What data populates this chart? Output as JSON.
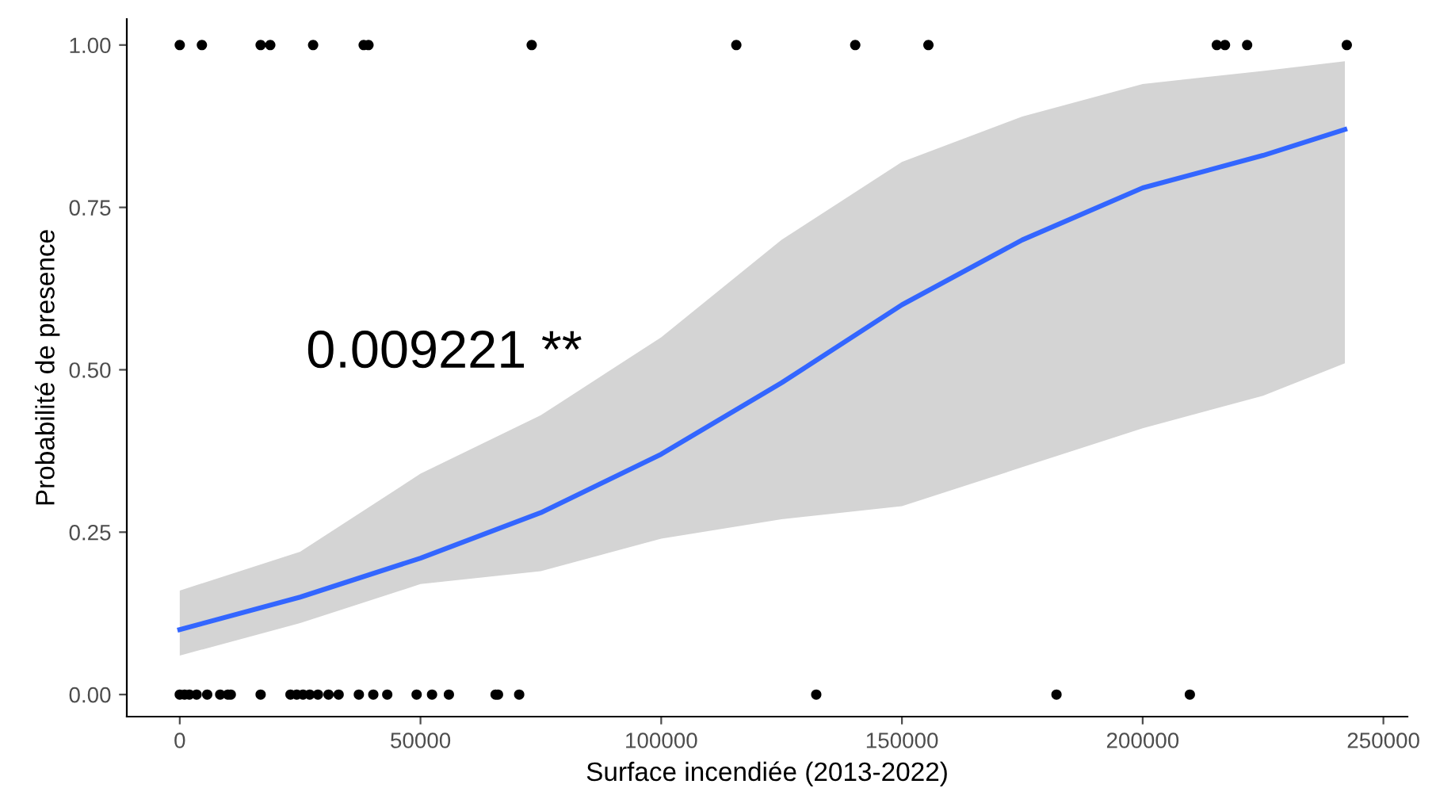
{
  "chart_data": {
    "type": "scatter",
    "xlabel": "Surface incendiée (2013-2022)",
    "ylabel": "Probabilité de presence",
    "xlim": [
      -11000,
      255000
    ],
    "xticks": [
      0,
      50000,
      100000,
      150000,
      200000,
      250000
    ],
    "ylim": [
      -0.034,
      1.04
    ],
    "yticks": [
      {
        "value": 0,
        "label": "0.00"
      },
      {
        "value": 0.25,
        "label": "0.25"
      },
      {
        "value": 0.5,
        "label": "0.50"
      },
      {
        "value": 0.75,
        "label": "0.75"
      },
      {
        "value": 1,
        "label": "1.00"
      }
    ],
    "grid": false,
    "legend": false,
    "annotations": [
      "0.009221 **"
    ],
    "series": [
      {
        "type": "line",
        "color": "#3366ff",
        "marker": "none",
        "x": [
          0,
          25000,
          50000,
          75000,
          100000,
          125000,
          150000,
          175000,
          200000,
          225000,
          242000
        ],
        "values": [
          0.1,
          0.15,
          0.21,
          0.28,
          0.37,
          0.48,
          0.6,
          0.7,
          0.78,
          0.83,
          0.87
        ],
        "lower": [
          0.06,
          0.11,
          0.17,
          0.19,
          0.24,
          0.27,
          0.29,
          0.35,
          0.41,
          0.46,
          0.51
        ],
        "upper": [
          0.16,
          0.22,
          0.34,
          0.43,
          0.55,
          0.7,
          0.82,
          0.89,
          0.94,
          0.96,
          0.975
        ]
      },
      {
        "color": "#000000",
        "marker": "circle",
        "x": [
          0,
          4600,
          16800,
          18800,
          27700,
          38200,
          39200,
          73100,
          115600,
          140300,
          155500,
          215400,
          217100,
          221700,
          242400
        ],
        "values": [
          1,
          1,
          1,
          1,
          1,
          1,
          1,
          1,
          1,
          1,
          1,
          1,
          1,
          1,
          1
        ]
      },
      {
        "color": "#000000",
        "marker": "circle",
        "x": [
          0,
          1000,
          2000,
          3500,
          5700,
          8400,
          10000,
          10600,
          16800,
          23000,
          24300,
          25600,
          27000,
          28700,
          30900,
          33000,
          37200,
          40200,
          43100,
          49200,
          52400,
          55900,
          65600,
          66100,
          70500,
          132200,
          182100,
          209800
        ],
        "values": [
          0,
          0,
          0,
          0,
          0,
          0,
          0,
          0,
          0,
          0,
          0,
          0,
          0,
          0,
          0,
          0,
          0,
          0,
          0,
          0,
          0,
          0,
          0,
          0,
          0,
          0,
          0,
          0
        ]
      }
    ]
  }
}
